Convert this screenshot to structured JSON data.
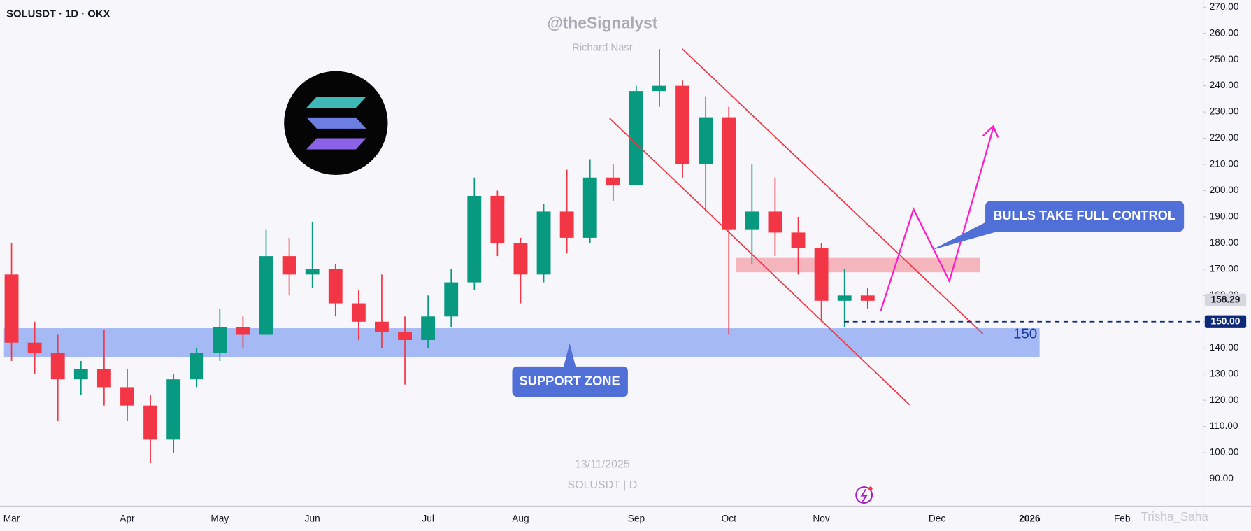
{
  "chart_data": {
    "type": "candlestick",
    "title": "SOLUSDT · 1D · OKX",
    "watermark": "@theSignalyst",
    "author": "Richard Nasr",
    "date_stamp": "13/11/2025",
    "symbol_stamp": "SOLUSDT | D",
    "credit": "Trisha_Saha",
    "annotations": {
      "support": "SUPPORT ZONE",
      "bulls": "BULLS TAKE FULL CONTROL",
      "level": "150"
    },
    "categories": [
      "Mar",
      null,
      null,
      null,
      null,
      "Apr",
      null,
      null,
      null,
      "May",
      null,
      null,
      null,
      "Jun",
      null,
      null,
      null,
      null,
      "Jul",
      null,
      null,
      null,
      "Aug",
      null,
      null,
      null,
      null,
      "Sep",
      null,
      null,
      null,
      "Oct",
      null,
      null,
      null,
      "Nov",
      null,
      null,
      null,
      null,
      "Dec",
      null,
      null,
      null,
      "2026",
      null,
      null,
      null,
      "Feb",
      null,
      null,
      null
    ],
    "open": [
      168,
      142,
      138,
      128,
      132,
      125,
      118,
      105,
      128,
      138,
      148,
      145,
      175,
      168,
      170,
      157,
      150,
      146,
      143,
      152,
      165,
      198,
      180,
      168,
      192,
      182,
      205,
      202,
      238,
      240,
      210,
      228,
      185,
      192,
      184,
      178,
      158,
      160,
      null,
      null,
      null,
      null,
      null,
      null,
      null,
      null,
      null,
      null,
      null,
      null,
      null,
      null
    ],
    "high": [
      180,
      150,
      145,
      135,
      147,
      132,
      122,
      130,
      140,
      155,
      152,
      185,
      182,
      188,
      172,
      162,
      168,
      152,
      160,
      170,
      205,
      200,
      182,
      195,
      208,
      212,
      210,
      240,
      254,
      242,
      236,
      232,
      210,
      205,
      190,
      180,
      170,
      163,
      null,
      null,
      null,
      null,
      null,
      null,
      null,
      null,
      null,
      null,
      null,
      null,
      null,
      null
    ],
    "low": [
      135,
      130,
      112,
      122,
      118,
      112,
      96,
      100,
      125,
      135,
      140,
      145,
      160,
      163,
      152,
      143,
      140,
      126,
      140,
      148,
      162,
      175,
      157,
      165,
      176,
      180,
      196,
      202,
      232,
      205,
      192,
      145,
      172,
      175,
      168,
      150,
      148,
      155,
      null,
      null,
      null,
      null,
      null,
      null,
      null,
      null,
      null,
      null,
      null,
      null,
      null,
      null
    ],
    "close": [
      142,
      138,
      128,
      132,
      125,
      118,
      105,
      128,
      138,
      148,
      145,
      175,
      168,
      170,
      157,
      150,
      146,
      143,
      152,
      165,
      198,
      180,
      168,
      192,
      182,
      205,
      202,
      238,
      240,
      210,
      228,
      185,
      192,
      184,
      178,
      158,
      160,
      158,
      null,
      null,
      null,
      null,
      null,
      null,
      null,
      null,
      null,
      null,
      null,
      null,
      null,
      null
    ],
    "up_color": "#089981",
    "down_color": "#f23645",
    "ylim": [
      79.6,
      272.7
    ],
    "yticks": [
      {
        "value": 90,
        "label": "90.00"
      },
      {
        "value": 100,
        "label": "100.00"
      },
      {
        "value": 110,
        "label": "110.00"
      },
      {
        "value": 120,
        "label": "120.00"
      },
      {
        "value": 130,
        "label": "130.00"
      },
      {
        "value": 140,
        "label": "140.00"
      },
      {
        "value": 150,
        "label": "150.00"
      },
      {
        "value": 160,
        "label": "160.00"
      },
      {
        "value": 170,
        "label": "170.00"
      },
      {
        "value": 180,
        "label": "180.00"
      },
      {
        "value": 190,
        "label": "190.00"
      },
      {
        "value": 200,
        "label": "200.00"
      },
      {
        "value": 210,
        "label": "210.00"
      },
      {
        "value": 220,
        "label": "220.00"
      },
      {
        "value": 230,
        "label": "230.00"
      },
      {
        "value": 240,
        "label": "240.00"
      },
      {
        "value": 250,
        "label": "250.00"
      },
      {
        "value": 260,
        "label": "260.00"
      },
      {
        "value": 270,
        "label": "270.00"
      }
    ],
    "price_labels": [
      {
        "value": 158.29,
        "label": "158.29",
        "color": "#d6d6de",
        "text_color": "#131722"
      },
      {
        "value": 150,
        "label": "150.00",
        "color": "#0d2a7a",
        "text_color": "#ffffff"
      }
    ],
    "level_line": {
      "value": 150,
      "color": "#0d2a7a"
    }
  }
}
